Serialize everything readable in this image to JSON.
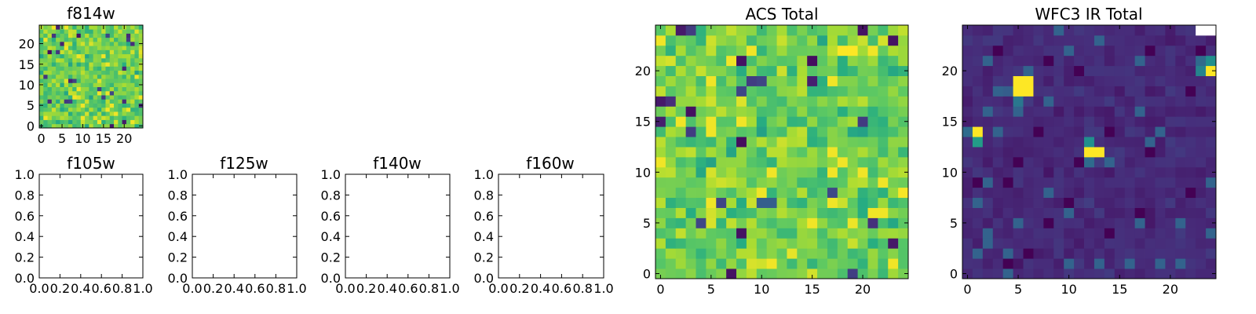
{
  "colors": {
    "viridis": [
      "#440154",
      "#472c7a",
      "#3b518b",
      "#2c718e",
      "#21908d",
      "#27ad81",
      "#5cc863",
      "#aadc32",
      "#fde725"
    ],
    "empty": "#ffffff",
    "frame": "#000000"
  },
  "chart_data": [
    {
      "id": "f814w",
      "type": "heatmap",
      "title": "f814w",
      "size": 25,
      "xlim": [
        -0.5,
        24.5
      ],
      "ylim": [
        -0.5,
        24.5
      ],
      "xticks": [
        0,
        5,
        10,
        15,
        20
      ],
      "yticks": [
        0,
        5,
        10,
        15,
        20
      ],
      "xtick_labels": [
        "0",
        "5",
        "10",
        "15",
        "20"
      ],
      "ytick_labels": [
        "0",
        "5",
        "10",
        "15",
        "20"
      ],
      "colormap": "viridis",
      "value_range": [
        0,
        1
      ],
      "typical_value": 0.78,
      "spread": 0.12,
      "seed": 814,
      "hotspots": []
    },
    {
      "id": "acs-total",
      "type": "heatmap",
      "title": "ACS Total",
      "size": 25,
      "xlim": [
        -0.5,
        24.5
      ],
      "ylim": [
        -0.5,
        24.5
      ],
      "xticks": [
        0,
        5,
        10,
        15,
        20
      ],
      "yticks": [
        0,
        5,
        10,
        15,
        20
      ],
      "xtick_labels": [
        "0",
        "5",
        "10",
        "15",
        "20"
      ],
      "ytick_labels": [
        "0",
        "5",
        "10",
        "15",
        "20"
      ],
      "colormap": "viridis",
      "value_range": [
        0,
        1
      ],
      "typical_value": 0.78,
      "spread": 0.12,
      "seed": 1337,
      "hotspots": [
        {
          "x": 18,
          "y": 22,
          "v": 1.0
        },
        {
          "x": 19,
          "y": 22,
          "v": 1.0
        },
        {
          "x": 8,
          "y": 21,
          "v": 0.05
        },
        {
          "x": 23,
          "y": 23,
          "v": 0.05
        },
        {
          "x": 20,
          "y": 24,
          "v": 0.05
        },
        {
          "x": 10,
          "y": 7,
          "v": 0.3
        },
        {
          "x": 11,
          "y": 7,
          "v": 0.3
        },
        {
          "x": 7,
          "y": 0,
          "v": 0.05
        },
        {
          "x": 8,
          "y": 4,
          "v": 0.05
        }
      ]
    },
    {
      "id": "wfc3-ir-total",
      "type": "heatmap",
      "title": "WFC3 IR Total",
      "size": 25,
      "xlim": [
        -0.5,
        24.5
      ],
      "ylim": [
        -0.5,
        24.5
      ],
      "xticks": [
        0,
        5,
        10,
        15,
        20
      ],
      "yticks": [
        0,
        5,
        10,
        15,
        20
      ],
      "xtick_labels": [
        "0",
        "5",
        "10",
        "15",
        "20"
      ],
      "ytick_labels": [
        "0",
        "5",
        "10",
        "15",
        "20"
      ],
      "colormap": "viridis",
      "value_range": [
        0,
        1
      ],
      "typical_value": 0.12,
      "spread": 0.035,
      "seed": 4242,
      "hotspots": [
        {
          "x": 5,
          "y": 18,
          "v": 1.0
        },
        {
          "x": 6,
          "y": 18,
          "v": 1.0
        },
        {
          "x": 5,
          "y": 19,
          "v": 1.0
        },
        {
          "x": 6,
          "y": 19,
          "v": 1.0
        },
        {
          "x": 4,
          "y": 18,
          "v": 0.3
        },
        {
          "x": 5,
          "y": 17,
          "v": 0.4
        },
        {
          "x": 1,
          "y": 14,
          "v": 1.0
        },
        {
          "x": 1,
          "y": 13,
          "v": 0.55
        },
        {
          "x": 0,
          "y": 14,
          "v": 0.35
        },
        {
          "x": 12,
          "y": 12,
          "v": 1.0
        },
        {
          "x": 13,
          "y": 12,
          "v": 1.0
        },
        {
          "x": 12,
          "y": 13,
          "v": 0.5
        },
        {
          "x": 12,
          "y": 11,
          "v": 0.35
        },
        {
          "x": 24,
          "y": 20,
          "v": 1.0
        },
        {
          "x": 24,
          "y": 21,
          "v": 0.5
        },
        {
          "x": 23,
          "y": 20,
          "v": 0.45
        },
        {
          "x": 23,
          "y": 21,
          "v": 0.35
        }
      ],
      "empty_cells": [
        {
          "x": 23,
          "y": 24
        },
        {
          "x": 24,
          "y": 24
        }
      ]
    },
    {
      "id": "f105w",
      "type": "scatter",
      "title": "f105w",
      "xlim": [
        0,
        1
      ],
      "ylim": [
        0,
        1
      ],
      "xticks": [
        0,
        0.2,
        0.4,
        0.6,
        0.8,
        1.0
      ],
      "yticks": [
        0,
        0.2,
        0.4,
        0.6,
        0.8,
        1.0
      ],
      "xtick_labels": [
        "0.0",
        "0.2",
        "0.4",
        "0.6",
        "0.8",
        "1.0"
      ],
      "ytick_labels": [
        "0.0",
        "0.2",
        "0.4",
        "0.6",
        "0.8",
        "1.0"
      ],
      "series": []
    },
    {
      "id": "f125w",
      "type": "scatter",
      "title": "f125w",
      "xlim": [
        0,
        1
      ],
      "ylim": [
        0,
        1
      ],
      "xticks": [
        0,
        0.2,
        0.4,
        0.6,
        0.8,
        1.0
      ],
      "yticks": [
        0,
        0.2,
        0.4,
        0.6,
        0.8,
        1.0
      ],
      "xtick_labels": [
        "0.0",
        "0.2",
        "0.4",
        "0.6",
        "0.8",
        "1.0"
      ],
      "ytick_labels": [
        "0.0",
        "0.2",
        "0.4",
        "0.6",
        "0.8",
        "1.0"
      ],
      "series": []
    },
    {
      "id": "f140w",
      "type": "scatter",
      "title": "f140w",
      "xlim": [
        0,
        1
      ],
      "ylim": [
        0,
        1
      ],
      "xticks": [
        0,
        0.2,
        0.4,
        0.6,
        0.8,
        1.0
      ],
      "yticks": [
        0,
        0.2,
        0.4,
        0.6,
        0.8,
        1.0
      ],
      "xtick_labels": [
        "0.0",
        "0.2",
        "0.4",
        "0.6",
        "0.8",
        "1.0"
      ],
      "ytick_labels": [
        "0.0",
        "0.2",
        "0.4",
        "0.6",
        "0.8",
        "1.0"
      ],
      "series": []
    },
    {
      "id": "f160w",
      "type": "scatter",
      "title": "f160w",
      "xlim": [
        0,
        1
      ],
      "ylim": [
        0,
        1
      ],
      "xticks": [
        0,
        0.2,
        0.4,
        0.6,
        0.8,
        1.0
      ],
      "yticks": [
        0,
        0.2,
        0.4,
        0.6,
        0.8,
        1.0
      ],
      "xtick_labels": [
        "0.0",
        "0.2",
        "0.4",
        "0.6",
        "0.8",
        "1.0"
      ],
      "ytick_labels": [
        "0.0",
        "0.2",
        "0.4",
        "0.6",
        "0.8",
        "1.0"
      ],
      "series": []
    }
  ]
}
